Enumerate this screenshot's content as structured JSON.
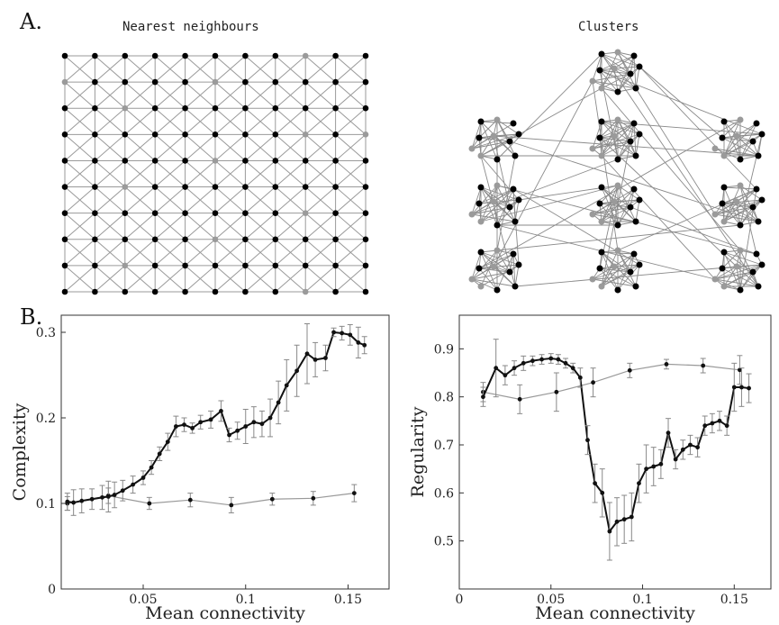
{
  "panel_a": {
    "letter": "A.",
    "left_title": "Nearest neighbours",
    "right_title": "Clusters"
  },
  "panel_b": {
    "letter": "B."
  },
  "chart_data": [
    {
      "type": "line",
      "ylabel": "Complexity",
      "xlabel": "Mean connectivity",
      "xlim": [
        0.01,
        0.17
      ],
      "ylim": [
        0,
        0.32
      ],
      "xticks": [
        0.05,
        0.1,
        0.15
      ],
      "xtick_labels": [
        "0.05",
        "0.1",
        "0.15"
      ],
      "yticks": [
        0,
        0.1,
        0.2,
        0.3
      ],
      "ytick_labels": [
        "0",
        "0.1",
        "0.2",
        "0.3"
      ],
      "grid": false,
      "series": [
        {
          "color": "#111111",
          "x": [
            0.013,
            0.016,
            0.02,
            0.025,
            0.03,
            0.033,
            0.036,
            0.04,
            0.045,
            0.05,
            0.054,
            0.058,
            0.062,
            0.066,
            0.07,
            0.074,
            0.078,
            0.083,
            0.088,
            0.092,
            0.096,
            0.1,
            0.104,
            0.108,
            0.112,
            0.116,
            0.12,
            0.125,
            0.13,
            0.134,
            0.139,
            0.143,
            0.147,
            0.151,
            0.155,
            0.158
          ],
          "y": [
            0.102,
            0.101,
            0.103,
            0.105,
            0.107,
            0.108,
            0.11,
            0.115,
            0.122,
            0.13,
            0.142,
            0.158,
            0.172,
            0.19,
            0.192,
            0.188,
            0.195,
            0.198,
            0.208,
            0.18,
            0.185,
            0.19,
            0.195,
            0.193,
            0.2,
            0.218,
            0.238,
            0.255,
            0.275,
            0.268,
            0.27,
            0.3,
            0.299,
            0.297,
            0.288,
            0.285
          ],
          "err": [
            0.01,
            0.015,
            0.014,
            0.012,
            0.014,
            0.018,
            0.015,
            0.012,
            0.01,
            0.008,
            0.008,
            0.008,
            0.01,
            0.012,
            0.008,
            0.006,
            0.008,
            0.01,
            0.012,
            0.008,
            0.01,
            0.02,
            0.018,
            0.015,
            0.022,
            0.025,
            0.03,
            0.03,
            0.035,
            0.02,
            0.015,
            0.005,
            0.008,
            0.012,
            0.018,
            0.01
          ]
        },
        {
          "color": "#999999",
          "x": [
            0.013,
            0.033,
            0.053,
            0.073,
            0.093,
            0.113,
            0.133,
            0.153
          ],
          "y": [
            0.1,
            0.109,
            0.1,
            0.104,
            0.098,
            0.105,
            0.106,
            0.112
          ],
          "err": [
            0.008,
            0.009,
            0.007,
            0.008,
            0.009,
            0.007,
            0.008,
            0.01
          ]
        }
      ]
    },
    {
      "type": "line",
      "ylabel": "Regularity",
      "xlabel": "Mean connectivity",
      "xlim": [
        0,
        0.17
      ],
      "ylim": [
        0.4,
        0.97
      ],
      "xticks": [
        0,
        0.05,
        0.1,
        0.15
      ],
      "xtick_labels": [
        "0",
        "0.05",
        "0.1",
        "0.15"
      ],
      "yticks": [
        0.5,
        0.6,
        0.7,
        0.8,
        0.9
      ],
      "ytick_labels": [
        "0.5",
        "0.6",
        "0.7",
        "0.8",
        "0.9"
      ],
      "grid": false,
      "series": [
        {
          "color": "#111111",
          "x": [
            0.013,
            0.02,
            0.025,
            0.03,
            0.035,
            0.04,
            0.045,
            0.05,
            0.054,
            0.058,
            0.062,
            0.066,
            0.07,
            0.074,
            0.078,
            0.082,
            0.086,
            0.09,
            0.094,
            0.098,
            0.102,
            0.106,
            0.11,
            0.114,
            0.118,
            0.122,
            0.126,
            0.13,
            0.134,
            0.138,
            0.142,
            0.146,
            0.15,
            0.154,
            0.158
          ],
          "y": [
            0.8,
            0.86,
            0.845,
            0.86,
            0.87,
            0.875,
            0.878,
            0.88,
            0.878,
            0.87,
            0.86,
            0.84,
            0.71,
            0.62,
            0.6,
            0.52,
            0.54,
            0.545,
            0.55,
            0.62,
            0.65,
            0.655,
            0.66,
            0.725,
            0.67,
            0.69,
            0.7,
            0.695,
            0.74,
            0.745,
            0.75,
            0.74,
            0.82,
            0.82,
            0.818
          ],
          "err": [
            0.02,
            0.06,
            0.02,
            0.015,
            0.015,
            0.01,
            0.01,
            0.01,
            0.01,
            0.01,
            0.01,
            0.02,
            0.03,
            0.04,
            0.05,
            0.06,
            0.05,
            0.05,
            0.05,
            0.04,
            0.05,
            0.04,
            0.03,
            0.03,
            0.02,
            0.02,
            0.02,
            0.02,
            0.02,
            0.02,
            0.02,
            0.02,
            0.05,
            0.04,
            0.03
          ]
        },
        {
          "color": "#999999",
          "x": [
            0.013,
            0.033,
            0.053,
            0.073,
            0.093,
            0.113,
            0.133,
            0.153
          ],
          "y": [
            0.81,
            0.795,
            0.81,
            0.83,
            0.855,
            0.868,
            0.865,
            0.856
          ],
          "err": [
            0.02,
            0.03,
            0.04,
            0.03,
            0.015,
            0.01,
            0.015,
            0.03
          ]
        }
      ]
    }
  ]
}
